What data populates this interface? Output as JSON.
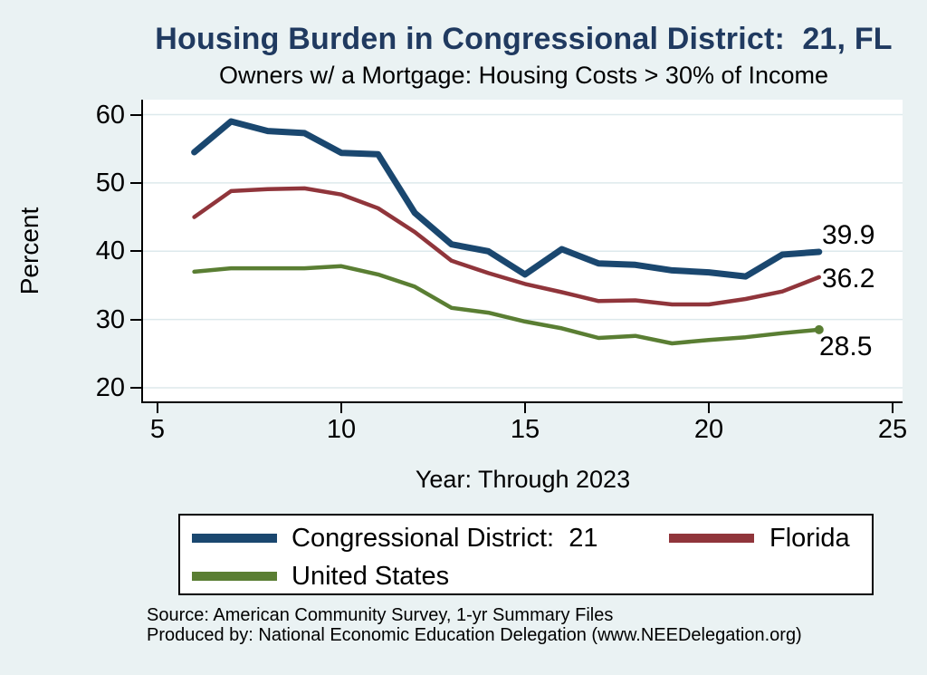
{
  "colors": {
    "background": "#eaf2f3",
    "plot_background": "#ffffff",
    "gridline": "#dde9ec",
    "axis": "#000000",
    "title": "#203a60"
  },
  "chart_data": {
    "type": "line",
    "title": "Housing Burden in Congressional District:  21, FL",
    "subtitle": "Owners w/ a Mortgage: Housing Costs > 30% of Income",
    "xlabel": "Year: Through 2023",
    "ylabel": "Percent",
    "x": [
      6,
      7,
      8,
      9,
      10,
      11,
      12,
      13,
      14,
      15,
      16,
      17,
      18,
      19,
      20,
      21,
      22,
      23
    ],
    "xticks": [
      5,
      10,
      15,
      20,
      25
    ],
    "yticks": [
      60,
      50,
      40,
      30,
      20
    ],
    "xlim": [
      4.6,
      25.3
    ],
    "ylim": [
      17.8,
      62.2
    ],
    "grid": "horizontal",
    "legend_position": "bottom",
    "series": [
      {
        "name": "Congressional District:  21",
        "color": "#1a476f",
        "stroke_width": 7,
        "end_label": "39.9",
        "end_marker": false,
        "values": [
          54.5,
          59.0,
          57.6,
          57.3,
          54.4,
          54.2,
          45.6,
          41.0,
          40.0,
          36.6,
          40.3,
          38.2,
          38.0,
          37.2,
          36.9,
          36.3,
          39.5,
          39.9
        ]
      },
      {
        "name": "Florida",
        "color": "#90353b",
        "stroke_width": 4.5,
        "end_label": "36.2",
        "end_marker": false,
        "values": [
          45.0,
          48.8,
          49.1,
          49.2,
          48.3,
          46.3,
          42.8,
          38.6,
          36.8,
          35.2,
          34.0,
          32.7,
          32.8,
          32.2,
          32.2,
          33.0,
          34.1,
          36.2
        ]
      },
      {
        "name": "United States",
        "color": "#5a7e33",
        "stroke_width": 4.5,
        "end_label": "28.5",
        "end_marker": true,
        "values": [
          37.0,
          37.5,
          37.5,
          37.5,
          37.8,
          36.6,
          34.8,
          31.7,
          31.0,
          29.7,
          28.7,
          27.3,
          27.6,
          26.5,
          27.0,
          27.4,
          28.0,
          28.5
        ]
      }
    ],
    "source_line1": "Source: American Community Survey, 1-yr Summary Files",
    "source_line2": "Produced by: National Economic Education Delegation (www.NEEDelegation.org)"
  }
}
